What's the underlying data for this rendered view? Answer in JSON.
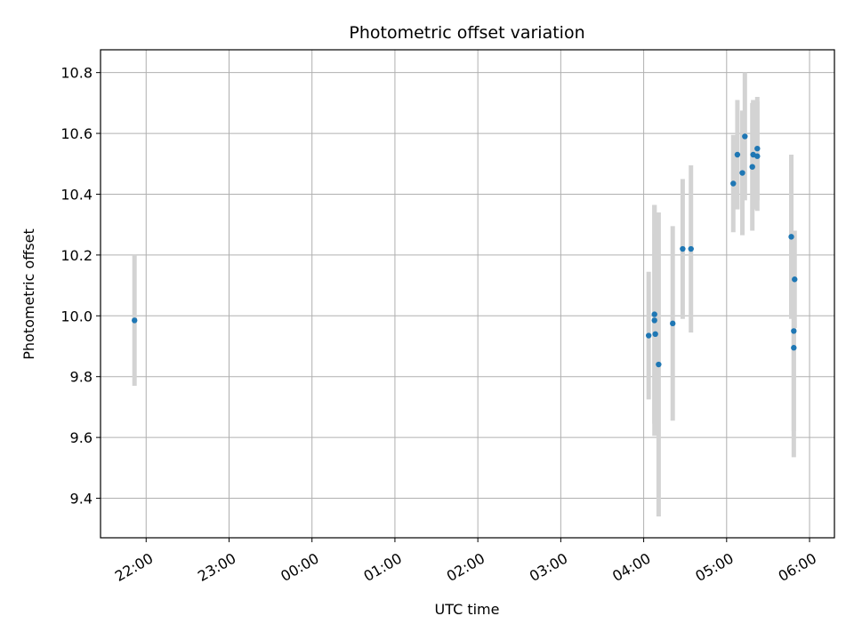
{
  "chart_data": {
    "type": "scatter",
    "title": "Photometric offset variation",
    "xlabel": "UTC time",
    "ylabel": "Photometric offset",
    "x_unit": "hours relative to 00:00",
    "xlim": [
      -2.55,
      6.3
    ],
    "ylim": [
      9.27,
      10.875
    ],
    "x_ticks": [
      {
        "value": -2,
        "label": "22:00"
      },
      {
        "value": -1,
        "label": "23:00"
      },
      {
        "value": 0,
        "label": "00:00"
      },
      {
        "value": 1,
        "label": "01:00"
      },
      {
        "value": 2,
        "label": "02:00"
      },
      {
        "value": 3,
        "label": "03:00"
      },
      {
        "value": 4,
        "label": "04:00"
      },
      {
        "value": 5,
        "label": "05:00"
      },
      {
        "value": 6,
        "label": "06:00"
      }
    ],
    "y_ticks": [
      {
        "value": 9.4,
        "label": "9.4"
      },
      {
        "value": 9.6,
        "label": "9.6"
      },
      {
        "value": 9.8,
        "label": "9.8"
      },
      {
        "value": 10.0,
        "label": "10.0"
      },
      {
        "value": 10.2,
        "label": "10.2"
      },
      {
        "value": 10.4,
        "label": "10.4"
      },
      {
        "value": 10.6,
        "label": "10.6"
      },
      {
        "value": 10.8,
        "label": "10.8"
      }
    ],
    "grid": true,
    "marker_color": "#1f77b4",
    "errorbar_color": "#d3d3d3",
    "points": [
      {
        "x": -2.14,
        "y": 9.985,
        "err": 0.215
      },
      {
        "x": 4.06,
        "y": 9.935,
        "err": 0.21
      },
      {
        "x": 4.13,
        "y": 10.005,
        "err": 0.36
      },
      {
        "x": 4.13,
        "y": 9.985,
        "err": 0.38
      },
      {
        "x": 4.14,
        "y": 9.94,
        "err": 0.33
      },
      {
        "x": 4.18,
        "y": 9.84,
        "err": 0.5
      },
      {
        "x": 4.35,
        "y": 9.975,
        "err": 0.32
      },
      {
        "x": 4.47,
        "y": 10.22,
        "err": 0.23
      },
      {
        "x": 4.57,
        "y": 10.22,
        "err": 0.275
      },
      {
        "x": 5.08,
        "y": 10.435,
        "err": 0.16
      },
      {
        "x": 5.13,
        "y": 10.53,
        "err": 0.18
      },
      {
        "x": 5.19,
        "y": 10.47,
        "err": 0.205
      },
      {
        "x": 5.22,
        "y": 10.59,
        "err": 0.21
      },
      {
        "x": 5.31,
        "y": 10.49,
        "err": 0.21
      },
      {
        "x": 5.32,
        "y": 10.53,
        "err": 0.18
      },
      {
        "x": 5.37,
        "y": 10.55,
        "err": 0.17
      },
      {
        "x": 5.37,
        "y": 10.525,
        "err": 0.18
      },
      {
        "x": 5.78,
        "y": 10.26,
        "err": 0.27
      },
      {
        "x": 5.81,
        "y": 9.95,
        "err": 0.33
      },
      {
        "x": 5.82,
        "y": 10.12,
        "err": 0.16
      },
      {
        "x": 5.81,
        "y": 9.895,
        "err": 0.36
      }
    ]
  }
}
